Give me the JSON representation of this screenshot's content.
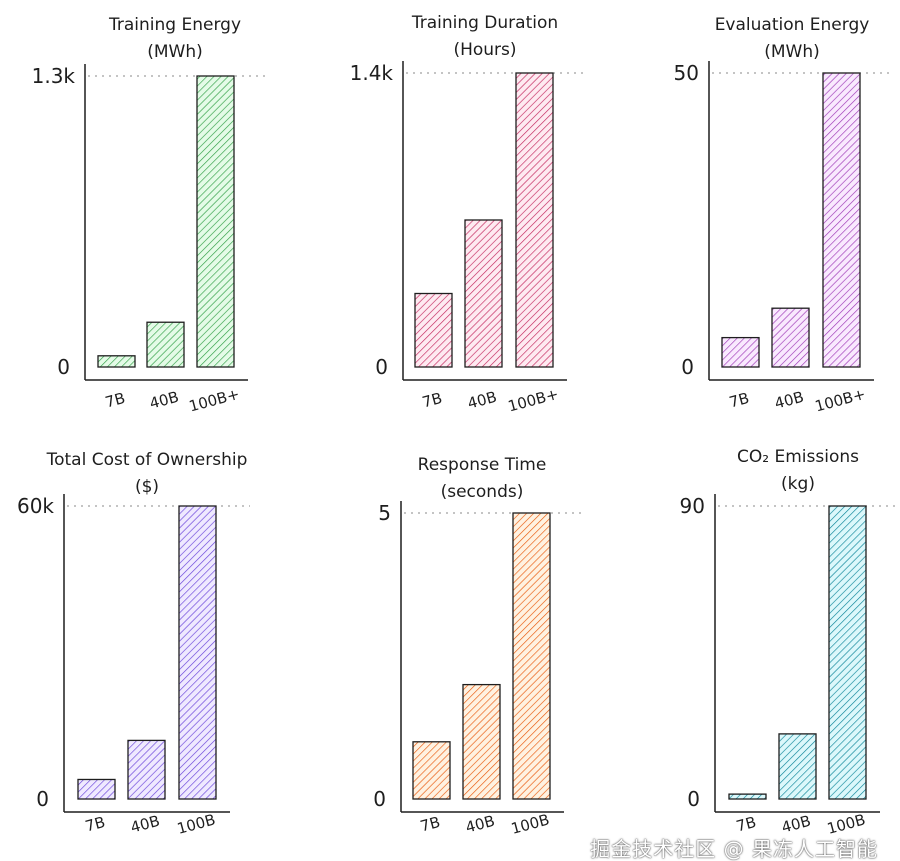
{
  "chart_data": [
    {
      "type": "bar",
      "title": [
        "Training Energy",
        "(MWh)"
      ],
      "categories": [
        "7B",
        "40B",
        "100B+"
      ],
      "values": [
        50,
        200,
        1300
      ],
      "ylim": [
        0,
        1300
      ],
      "yticks": [
        "0",
        "1.3k"
      ],
      "color": "#2f9e44",
      "fill": "#b2f2bb",
      "grid": "dashed line at max"
    },
    {
      "type": "bar",
      "title": [
        "Training Duration",
        "(Hours)"
      ],
      "categories": [
        "7B",
        "40B",
        "100B+"
      ],
      "values": [
        350,
        700,
        1400
      ],
      "ylim": [
        0,
        1400
      ],
      "yticks": [
        "0",
        "1.4k"
      ],
      "color": "#c2255c",
      "fill": "#fcc2d7",
      "grid": "dashed line at max"
    },
    {
      "type": "bar",
      "title": [
        "Evaluation Energy",
        "(MWh)"
      ],
      "categories": [
        "7B",
        "40B",
        "100B+"
      ],
      "values": [
        5,
        10,
        50
      ],
      "ylim": [
        0,
        50
      ],
      "yticks": [
        "0",
        "50"
      ],
      "color": "#9c36b5",
      "fill": "#eebefa",
      "grid": "dashed line at max"
    },
    {
      "type": "bar",
      "title": [
        "Total Cost of Ownership",
        "($)"
      ],
      "categories": [
        "7B",
        "40B",
        "100B"
      ],
      "values": [
        4000,
        12000,
        60000
      ],
      "ylim": [
        0,
        60000
      ],
      "yticks": [
        "0",
        "60k"
      ],
      "color": "#6741d9",
      "fill": "#d0bfff",
      "grid": "dashed line at max"
    },
    {
      "type": "bar",
      "title": [
        "Response Time",
        "(seconds)"
      ],
      "categories": [
        "7B",
        "40B",
        "100B"
      ],
      "values": [
        1,
        2,
        5
      ],
      "ylim": [
        0,
        5
      ],
      "yticks": [
        "0",
        "5"
      ],
      "color": "#e8590c",
      "fill": "#ffd8a8",
      "grid": "dashed line at max"
    },
    {
      "type": "bar",
      "title": [
        "CO₂ Emissions",
        "(kg)"
      ],
      "categories": [
        "7B",
        "40B",
        "100B"
      ],
      "values": [
        1.5,
        20,
        90
      ],
      "ylim": [
        0,
        90
      ],
      "yticks": [
        "0",
        "90"
      ],
      "color": "#0c8599",
      "fill": "#99e9f2",
      "grid": "dashed line at max"
    }
  ],
  "watermark": "掘金技术社区 @ 果冻人工智能"
}
